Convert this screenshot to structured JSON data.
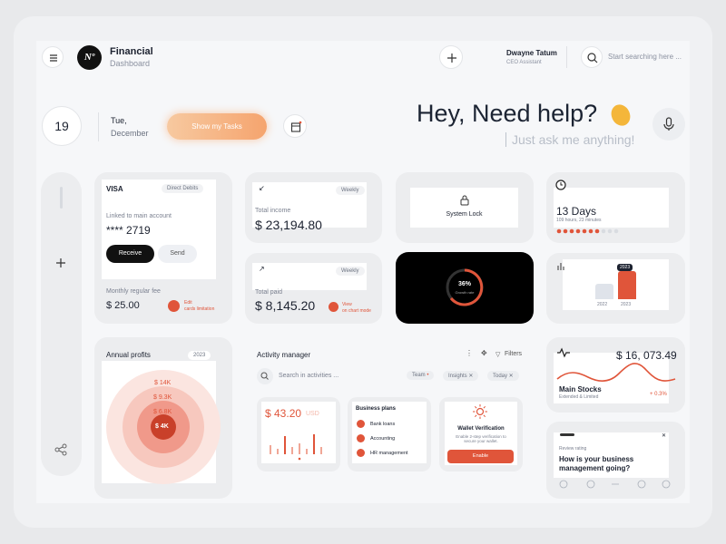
{
  "header": {
    "logo": "Nº",
    "app_title": "Financial",
    "app_subtitle": "Dashboard",
    "user_name": "Dwayne Tatum",
    "user_role": "CEO Assistant",
    "search_placeholder": "Start searching here ..."
  },
  "date": {
    "day": "19",
    "weekday": "Tue,",
    "month": "December",
    "tasks_button": "Show my Tasks"
  },
  "greeting": {
    "title": "Hey, Need help?",
    "subtitle": "Just ask me anything!"
  },
  "visa_card": {
    "brand": "VISA",
    "dropdown": "Direct Debits",
    "linked": "Linked to main account",
    "number": "**** 2719",
    "receive": "Receive",
    "send": "Send",
    "fee_label": "Monthly regular fee",
    "fee": "$ 25.00",
    "edit": "Edit",
    "edit_sub": "cards limitation"
  },
  "income_card": {
    "period": "Weekly",
    "label": "Total income",
    "amount": "$ 23,194.80"
  },
  "paid_card": {
    "period": "Weekly",
    "label": "Total paid",
    "amount": "$ 8,145.20",
    "view": "View",
    "view_sub": "on chart mode"
  },
  "lock_card": {
    "label": "System Lock"
  },
  "growth_card": {
    "percent": "36%",
    "label": "Growth rate"
  },
  "days_card": {
    "title": "13 Days",
    "subtitle": "109 hours, 23 minutes"
  },
  "compare_card": {
    "badge": "2023",
    "labels": [
      "2022",
      "2023"
    ]
  },
  "profits_card": {
    "title": "Annual profits",
    "year": "2023",
    "rings": [
      "$ 14K",
      "$ 9.3K",
      "$ 6.8K",
      "$ 4K"
    ]
  },
  "activity": {
    "title": "Activity manager",
    "filters": "Filters",
    "search": "Search in activities ...",
    "tags": [
      "Team",
      "Insights",
      "Today"
    ],
    "balance": {
      "amount": "$ 43.20",
      "currency": "USD"
    },
    "plans": {
      "title": "Business plans",
      "items": [
        "Bank loans",
        "Accounting",
        "HR management"
      ]
    },
    "wallet": {
      "title": "Wallet Verification",
      "text": "Enable 2-step verification to secure your wallet.",
      "button": "Enable"
    }
  },
  "stocks_card": {
    "amount": "$ 16, 073.49",
    "title": "Main Stocks",
    "subtitle": "Extended & Limited",
    "change": "+ 0.3%"
  },
  "review_card": {
    "label": "Review rating",
    "question": "How is your business management going?"
  }
}
